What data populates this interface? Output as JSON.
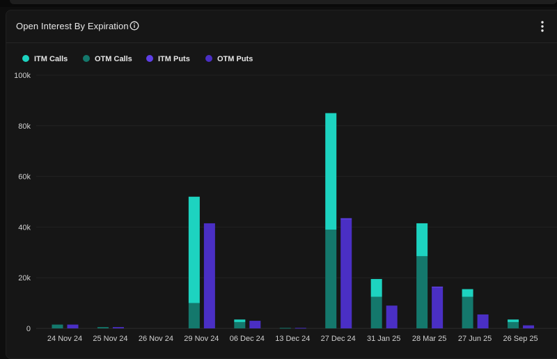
{
  "header": {
    "title": "Open Interest By Expiration",
    "info_icon": "info-icon",
    "menu_icon": "more-vertical-icon"
  },
  "colors": {
    "itm_calls": "#1dd3c0",
    "otm_calls": "#14786c",
    "itm_puts": "#5e3fe6",
    "otm_puts": "#4a2fc4"
  },
  "chart_data": {
    "type": "bar",
    "stacked": true,
    "categories": [
      "24 Nov 24",
      "25 Nov 24",
      "26 Nov 24",
      "29 Nov 24",
      "06 Dec 24",
      "13 Dec 24",
      "27 Dec 24",
      "31 Jan 25",
      "28 Mar 25",
      "27 Jun 25",
      "26 Sep 25"
    ],
    "series": [
      {
        "name": "ITM Calls",
        "stack": "calls",
        "values": [
          0,
          0,
          0,
          42000,
          1000,
          0,
          46000,
          7000,
          13000,
          3000,
          1000
        ]
      },
      {
        "name": "OTM Calls",
        "stack": "calls",
        "values": [
          1500,
          500,
          0,
          10000,
          2500,
          200,
          39000,
          12500,
          28500,
          12500,
          2500
        ]
      },
      {
        "name": "ITM Puts",
        "stack": "puts",
        "values": [
          0,
          0,
          0,
          0,
          0,
          0,
          500,
          0,
          500,
          0,
          0
        ]
      },
      {
        "name": "OTM Puts",
        "stack": "puts",
        "values": [
          1500,
          500,
          0,
          41500,
          3000,
          200,
          43000,
          9000,
          16000,
          5500,
          1200
        ]
      }
    ],
    "yticks": [
      "0",
      "20k",
      "40k",
      "60k",
      "80k",
      "100k"
    ],
    "ylim": [
      0,
      100000
    ],
    "xlabel": "",
    "ylabel": "",
    "grid": true,
    "legend_position": "top-left"
  }
}
